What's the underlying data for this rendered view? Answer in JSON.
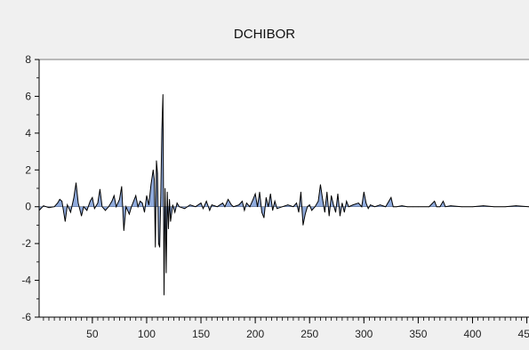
{
  "chart_data": {
    "type": "area",
    "title": "DCHIBOR",
    "xlabel": "",
    "ylabel": "",
    "xlim": [
      1,
      452
    ],
    "ylim": [
      -6,
      8
    ],
    "x_ticks": [
      50,
      100,
      150,
      200,
      250,
      300,
      350,
      400,
      450
    ],
    "y_ticks": [
      8,
      6,
      4,
      2,
      0,
      -2,
      -4,
      -6
    ],
    "grid": false,
    "legend": "none",
    "colors": {
      "line": "#000000",
      "fill": "#6b8fd1",
      "background": "#ffffff",
      "frame": "#f0f0f0"
    },
    "series": [
      {
        "points": [
          [
            1,
            -0.2
          ],
          [
            5,
            0.05
          ],
          [
            10,
            -0.05
          ],
          [
            15,
            0.0
          ],
          [
            18,
            0.2
          ],
          [
            20,
            0.4
          ],
          [
            22,
            0.3
          ],
          [
            25,
            -0.8
          ],
          [
            27,
            0.1
          ],
          [
            30,
            -0.3
          ],
          [
            33,
            0.5
          ],
          [
            35,
            1.3
          ],
          [
            37,
            0.2
          ],
          [
            40,
            -0.5
          ],
          [
            42,
            0.0
          ],
          [
            45,
            -0.2
          ],
          [
            48,
            0.3
          ],
          [
            50,
            0.5
          ],
          [
            52,
            -0.1
          ],
          [
            55,
            0.2
          ],
          [
            57,
            0.95
          ],
          [
            59,
            0.0
          ],
          [
            62,
            -0.2
          ],
          [
            65,
            0.0
          ],
          [
            68,
            0.3
          ],
          [
            70,
            0.6
          ],
          [
            72,
            0.0
          ],
          [
            75,
            0.4
          ],
          [
            77,
            1.1
          ],
          [
            79,
            -1.3
          ],
          [
            81,
            0.0
          ],
          [
            84,
            -0.4
          ],
          [
            86,
            0.0
          ],
          [
            88,
            0.3
          ],
          [
            90,
            0.6
          ],
          [
            92,
            0.0
          ],
          [
            94,
            0.3
          ],
          [
            96,
            0.2
          ],
          [
            98,
            -0.3
          ],
          [
            100,
            0.6
          ],
          [
            102,
            0.1
          ],
          [
            104,
            1.2
          ],
          [
            106,
            2.0
          ],
          [
            107,
            1.5
          ],
          [
            108,
            -2.2
          ],
          [
            109,
            2.5
          ],
          [
            110,
            1.8
          ],
          [
            111,
            -2.0
          ],
          [
            112,
            -2.2
          ],
          [
            113,
            0.5
          ],
          [
            114,
            4.2
          ],
          [
            115,
            6.1
          ],
          [
            116,
            -4.8
          ],
          [
            117,
            1.0
          ],
          [
            118,
            -3.6
          ],
          [
            119,
            0.8
          ],
          [
            120,
            -1.2
          ],
          [
            121,
            0.4
          ],
          [
            122,
            -0.8
          ],
          [
            124,
            0.1
          ],
          [
            126,
            -0.3
          ],
          [
            128,
            0.2
          ],
          [
            130,
            0.0
          ],
          [
            135,
            -0.1
          ],
          [
            140,
            0.1
          ],
          [
            145,
            0.0
          ],
          [
            150,
            0.2
          ],
          [
            152,
            -0.1
          ],
          [
            155,
            0.3
          ],
          [
            158,
            -0.2
          ],
          [
            160,
            0.1
          ],
          [
            165,
            0.0
          ],
          [
            170,
            0.2
          ],
          [
            172,
            0.0
          ],
          [
            175,
            0.4
          ],
          [
            178,
            0.1
          ],
          [
            180,
            0.0
          ],
          [
            185,
            0.1
          ],
          [
            188,
            0.3
          ],
          [
            190,
            -0.2
          ],
          [
            192,
            0.2
          ],
          [
            195,
            0.0
          ],
          [
            198,
            0.4
          ],
          [
            200,
            0.7
          ],
          [
            202,
            0.0
          ],
          [
            204,
            0.8
          ],
          [
            206,
            -0.3
          ],
          [
            208,
            -0.6
          ],
          [
            210,
            0.5
          ],
          [
            212,
            0.0
          ],
          [
            214,
            0.7
          ],
          [
            216,
            -0.2
          ],
          [
            218,
            0.3
          ],
          [
            220,
            -0.1
          ],
          [
            225,
            0.0
          ],
          [
            230,
            0.1
          ],
          [
            235,
            0.0
          ],
          [
            238,
            0.2
          ],
          [
            240,
            -0.3
          ],
          [
            242,
            0.8
          ],
          [
            244,
            -1.0
          ],
          [
            246,
            -0.4
          ],
          [
            248,
            0.0
          ],
          [
            250,
            0.1
          ],
          [
            252,
            -0.2
          ],
          [
            255,
            0.0
          ],
          [
            258,
            0.3
          ],
          [
            260,
            1.2
          ],
          [
            262,
            0.4
          ],
          [
            264,
            -0.3
          ],
          [
            266,
            0.8
          ],
          [
            268,
            -0.5
          ],
          [
            270,
            0.6
          ],
          [
            272,
            0.1
          ],
          [
            274,
            -0.3
          ],
          [
            276,
            0.7
          ],
          [
            278,
            -0.5
          ],
          [
            280,
            0.2
          ],
          [
            282,
            -0.3
          ],
          [
            284,
            0.3
          ],
          [
            286,
            0.0
          ],
          [
            290,
            0.1
          ],
          [
            295,
            0.2
          ],
          [
            298,
            0.0
          ],
          [
            300,
            0.8
          ],
          [
            302,
            0.2
          ],
          [
            304,
            -0.1
          ],
          [
            306,
            0.1
          ],
          [
            310,
            0.0
          ],
          [
            315,
            0.1
          ],
          [
            320,
            0.0
          ],
          [
            325,
            0.5
          ],
          [
            327,
            0.0
          ],
          [
            330,
            0.0
          ],
          [
            335,
            0.05
          ],
          [
            340,
            0.0
          ],
          [
            345,
            0.0
          ],
          [
            350,
            0.0
          ],
          [
            360,
            0.0
          ],
          [
            365,
            0.3
          ],
          [
            367,
            0.0
          ],
          [
            370,
            0.0
          ],
          [
            373,
            0.3
          ],
          [
            375,
            0.0
          ],
          [
            380,
            0.05
          ],
          [
            390,
            0.0
          ],
          [
            400,
            0.0
          ],
          [
            410,
            0.05
          ],
          [
            420,
            0.0
          ],
          [
            430,
            0.0
          ],
          [
            440,
            0.05
          ],
          [
            452,
            0.0
          ]
        ]
      }
    ]
  }
}
